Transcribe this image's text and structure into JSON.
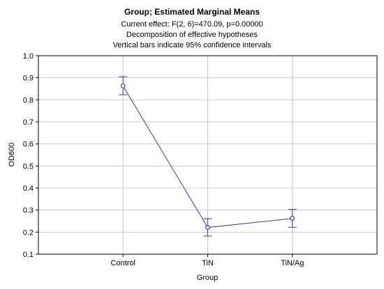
{
  "chart_data": {
    "type": "line",
    "title": "Group; Estimated Marginal Means",
    "subtitles": [
      "Current effect: F(2, 6)=470.09, p=0.00000",
      "Decomposition of effective hypotheses",
      "Vertical bars indicate 95% confidence intervals"
    ],
    "xlabel": "Group",
    "ylabel": "OD600",
    "categories": [
      "Control",
      "TiN",
      "TiN/Ag"
    ],
    "series": [
      {
        "values": [
          0.863,
          0.221,
          0.262
        ],
        "ci_lower": [
          0.823,
          0.182,
          0.222
        ],
        "ci_upper": [
          0.905,
          0.261,
          0.303
        ]
      }
    ],
    "ylim": [
      0.1,
      1.0
    ],
    "yticks": [
      "0.1",
      "0.2",
      "0.3",
      "0.4",
      "0.5",
      "0.6",
      "0.7",
      "0.8",
      "0.9",
      "1.0"
    ],
    "grid": true,
    "colors": {
      "series": "#3333cc",
      "grid": "#c8c8c8",
      "frame": "#000000"
    }
  }
}
